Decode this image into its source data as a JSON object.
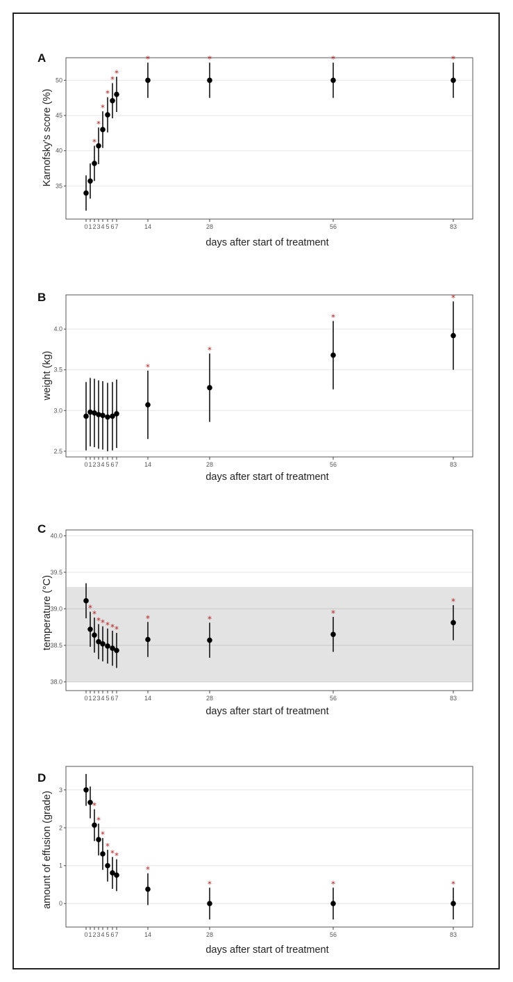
{
  "colors": {
    "point": "#000000",
    "errorbar": "#111111",
    "significance_star": "#b22222",
    "reference_band": "#e3e3e3",
    "grid": "#e6e6e6",
    "frame": "#222222"
  },
  "significance_marker": "*",
  "chart_data": [
    {
      "type": "scatter",
      "panel": "A",
      "xlabel": "days after start of treatment",
      "ylabel": "Karnofsky's score (%)",
      "x": [
        0,
        1,
        2,
        3,
        4,
        5,
        6,
        7,
        14,
        28,
        56,
        83
      ],
      "xticks": [
        "0",
        "1",
        "2",
        "3",
        "4",
        "5",
        "6",
        "7",
        "14",
        "28",
        "56",
        "83"
      ],
      "series": [
        {
          "values": [
            34.0,
            35.7,
            38.2,
            40.7,
            43.0,
            45.1,
            47.1,
            48.0,
            50.0,
            50.0,
            50.0,
            50.0
          ],
          "lower": [
            31.5,
            33.2,
            35.7,
            38.1,
            40.4,
            42.6,
            44.6,
            45.5,
            47.5,
            47.5,
            47.5,
            47.5
          ],
          "upper": [
            36.5,
            38.2,
            40.7,
            43.3,
            45.6,
            47.6,
            49.6,
            50.5,
            52.5,
            52.5,
            52.5,
            52.5
          ],
          "significant": [
            false,
            false,
            true,
            true,
            true,
            true,
            true,
            true,
            true,
            true,
            true,
            true
          ]
        }
      ],
      "yticks": [
        35,
        40,
        45,
        50
      ],
      "ylim": [
        30.3,
        53.2
      ],
      "xlim": [
        -1.5,
        86.5
      ],
      "grid": true
    },
    {
      "type": "scatter",
      "panel": "B",
      "xlabel": "days after start of treatment",
      "ylabel": "weight (kg)",
      "x": [
        0,
        1,
        2,
        3,
        4,
        5,
        6,
        7,
        14,
        28,
        56,
        83
      ],
      "xticks": [
        "0",
        "1",
        "2",
        "3",
        "4",
        "5",
        "6",
        "7",
        "14",
        "28",
        "56",
        "83"
      ],
      "series": [
        {
          "values": [
            2.93,
            2.98,
            2.97,
            2.95,
            2.94,
            2.92,
            2.93,
            2.96,
            3.07,
            3.28,
            3.68,
            3.92
          ],
          "lower": [
            2.51,
            2.56,
            2.55,
            2.53,
            2.52,
            2.5,
            2.51,
            2.54,
            2.65,
            2.86,
            3.26,
            3.5
          ],
          "upper": [
            3.35,
            3.4,
            3.39,
            3.37,
            3.36,
            3.34,
            3.35,
            3.38,
            3.49,
            3.7,
            4.1,
            4.34
          ],
          "significant": [
            false,
            false,
            false,
            false,
            false,
            false,
            false,
            false,
            true,
            true,
            true,
            true
          ]
        }
      ],
      "yticks": [
        2.5,
        3.0,
        3.5,
        4.0
      ],
      "ytick_labels": [
        "2.5",
        "3.0",
        "3.5",
        "4.0"
      ],
      "ylim": [
        2.43,
        4.42
      ],
      "xlim": [
        -1.5,
        86.5
      ],
      "grid": true
    },
    {
      "type": "scatter",
      "panel": "C",
      "xlabel": "days after start of treatment",
      "ylabel": "temperature (°C)",
      "x": [
        0,
        1,
        2,
        3,
        4,
        5,
        6,
        7,
        14,
        28,
        56,
        83
      ],
      "xticks": [
        "0",
        "1",
        "2",
        "3",
        "4",
        "5",
        "6",
        "7",
        "14",
        "28",
        "56",
        "83"
      ],
      "series": [
        {
          "values": [
            39.11,
            38.72,
            38.64,
            38.55,
            38.52,
            38.49,
            38.46,
            38.43,
            38.58,
            38.57,
            38.65,
            38.81
          ],
          "lower": [
            38.87,
            38.48,
            38.4,
            38.31,
            38.28,
            38.25,
            38.22,
            38.19,
            38.34,
            38.33,
            38.41,
            38.57
          ],
          "upper": [
            39.35,
            38.96,
            38.88,
            38.79,
            38.76,
            38.73,
            38.7,
            38.67,
            38.82,
            38.81,
            38.89,
            39.05
          ],
          "significant": [
            false,
            true,
            true,
            true,
            true,
            true,
            true,
            true,
            true,
            true,
            true,
            true
          ]
        }
      ],
      "reference_band": [
        38.0,
        39.3
      ],
      "yticks": [
        38.0,
        38.5,
        39.0,
        39.5,
        40.0
      ],
      "ytick_labels": [
        "38.0",
        "38.5",
        "39.0",
        "39.5",
        "40.0"
      ],
      "ylim": [
        37.88,
        40.08
      ],
      "xlim": [
        -1.5,
        86.5
      ],
      "grid": true
    },
    {
      "type": "scatter",
      "panel": "D",
      "xlabel": "days after start of treatment",
      "ylabel": "amount of effusion (grade)",
      "x": [
        0,
        1,
        2,
        3,
        4,
        5,
        6,
        7,
        14,
        28,
        56,
        83
      ],
      "xticks": [
        "0",
        "1",
        "2",
        "3",
        "4",
        "5",
        "6",
        "7",
        "14",
        "28",
        "56",
        "83"
      ],
      "series": [
        {
          "values": [
            3.0,
            2.67,
            2.07,
            1.69,
            1.31,
            1.0,
            0.81,
            0.75,
            0.38,
            0.0,
            0.0,
            0.0
          ],
          "lower": [
            2.58,
            2.25,
            1.65,
            1.27,
            0.89,
            0.58,
            0.39,
            0.33,
            -0.04,
            -0.42,
            -0.42,
            -0.42
          ],
          "upper": [
            3.42,
            3.09,
            2.49,
            2.11,
            1.73,
            1.42,
            1.23,
            1.17,
            0.8,
            0.42,
            0.42,
            0.42
          ],
          "significant": [
            false,
            false,
            true,
            true,
            true,
            true,
            true,
            true,
            true,
            true,
            true,
            true
          ]
        }
      ],
      "yticks": [
        0,
        1,
        2,
        3
      ],
      "ylim": [
        -0.62,
        3.62
      ],
      "xlim": [
        -1.5,
        86.5
      ],
      "grid": true
    }
  ]
}
